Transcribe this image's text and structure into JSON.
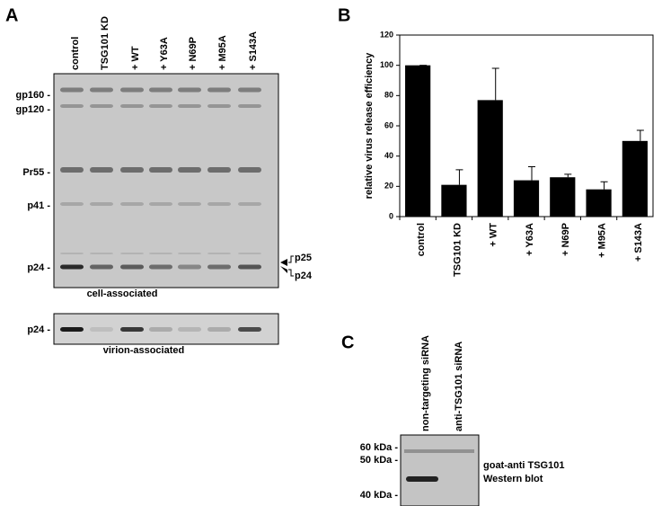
{
  "panel_a": {
    "letter": "A",
    "lanes": [
      "control",
      "TSG101  KD",
      "+ WT",
      "+ Y63A",
      "+ N69P",
      "+ M95A",
      "+ S143A"
    ],
    "markers": [
      "gp160 -",
      "gp120 -",
      "Pr55 -",
      "p41 -",
      "p24 -"
    ],
    "right_markers": [
      "p25",
      "p24"
    ],
    "caption_cell": "cell-associated",
    "virion_marker": "p24 -",
    "caption_virion": "virion-associated"
  },
  "chart_data": {
    "type": "bar",
    "letter": "B",
    "ylabel": "relative virus release efficiency",
    "categories": [
      "control",
      "TSG101 KD",
      "+ WT",
      "+ Y63A",
      "+ N69P",
      "+ M95A",
      "+ S143A"
    ],
    "values": [
      100,
      21,
      77,
      24,
      26,
      18,
      50
    ],
    "errors": [
      0,
      10,
      21,
      9,
      2,
      5,
      7
    ],
    "color": "#000000",
    "ylim": [
      0,
      120
    ],
    "yticks": [
      0,
      20,
      40,
      60,
      80,
      100,
      120
    ],
    "grid": false
  },
  "panel_c": {
    "letter": "C",
    "lanes": [
      "non-targeting siRNA",
      "anti-TSG101 siRNA"
    ],
    "markers": [
      "60 kDa -",
      "50 kDa -",
      "40 kDa -"
    ],
    "note": [
      "goat-anti TSG101",
      "Western blot"
    ]
  }
}
